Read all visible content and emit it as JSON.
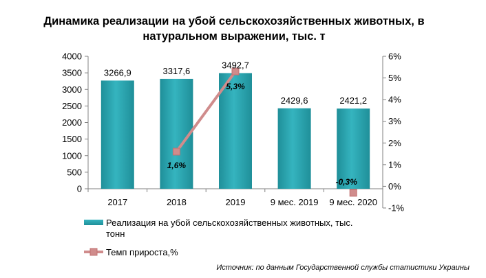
{
  "chart_data": {
    "type": "bar",
    "title": "Динамика реализации на убой сельскохозяйственных животных, в натуральном выражении, тыс. т",
    "categories": [
      "2017",
      "2018",
      "2019",
      "9 мес. 2019",
      "9 мес. 2020"
    ],
    "series": [
      {
        "name": "Реализация на убой сельскохозяйственных животных, тыс. тонн",
        "type": "bar",
        "axis": "left",
        "color": "#2aa7b2",
        "values": [
          3266.9,
          3317.6,
          3492.7,
          2429.6,
          2421.2
        ],
        "labels": [
          "3266,9",
          "3317,6",
          "3492,7",
          "2429,6",
          "2421,2"
        ]
      },
      {
        "name": "Темп прироста,%",
        "type": "line",
        "axis": "right",
        "color": "#d08c8c",
        "segments": [
          [
            1,
            2
          ],
          [
            4,
            4
          ]
        ],
        "points": [
          {
            "index": 1,
            "value": 1.6,
            "label": "1,6%"
          },
          {
            "index": 2,
            "value": 5.3,
            "label": "5,3%"
          },
          {
            "index": 4,
            "value": -0.3,
            "label": "-0,3%"
          }
        ]
      }
    ],
    "y_left": {
      "min": 0,
      "max": 4000,
      "step": 500,
      "tick_labels": [
        "0",
        "500",
        "1000",
        "1500",
        "2000",
        "2500",
        "3000",
        "3500",
        "4000"
      ]
    },
    "y_right": {
      "min": -1,
      "max": 6,
      "step": 1,
      "tick_labels": [
        "-1%",
        "0%",
        "1%",
        "2%",
        "3%",
        "4%",
        "5%",
        "6%"
      ]
    },
    "grid": false,
    "legend_position": "bottom"
  },
  "source": "Источник: по данным Государственной службы статистики Украины"
}
